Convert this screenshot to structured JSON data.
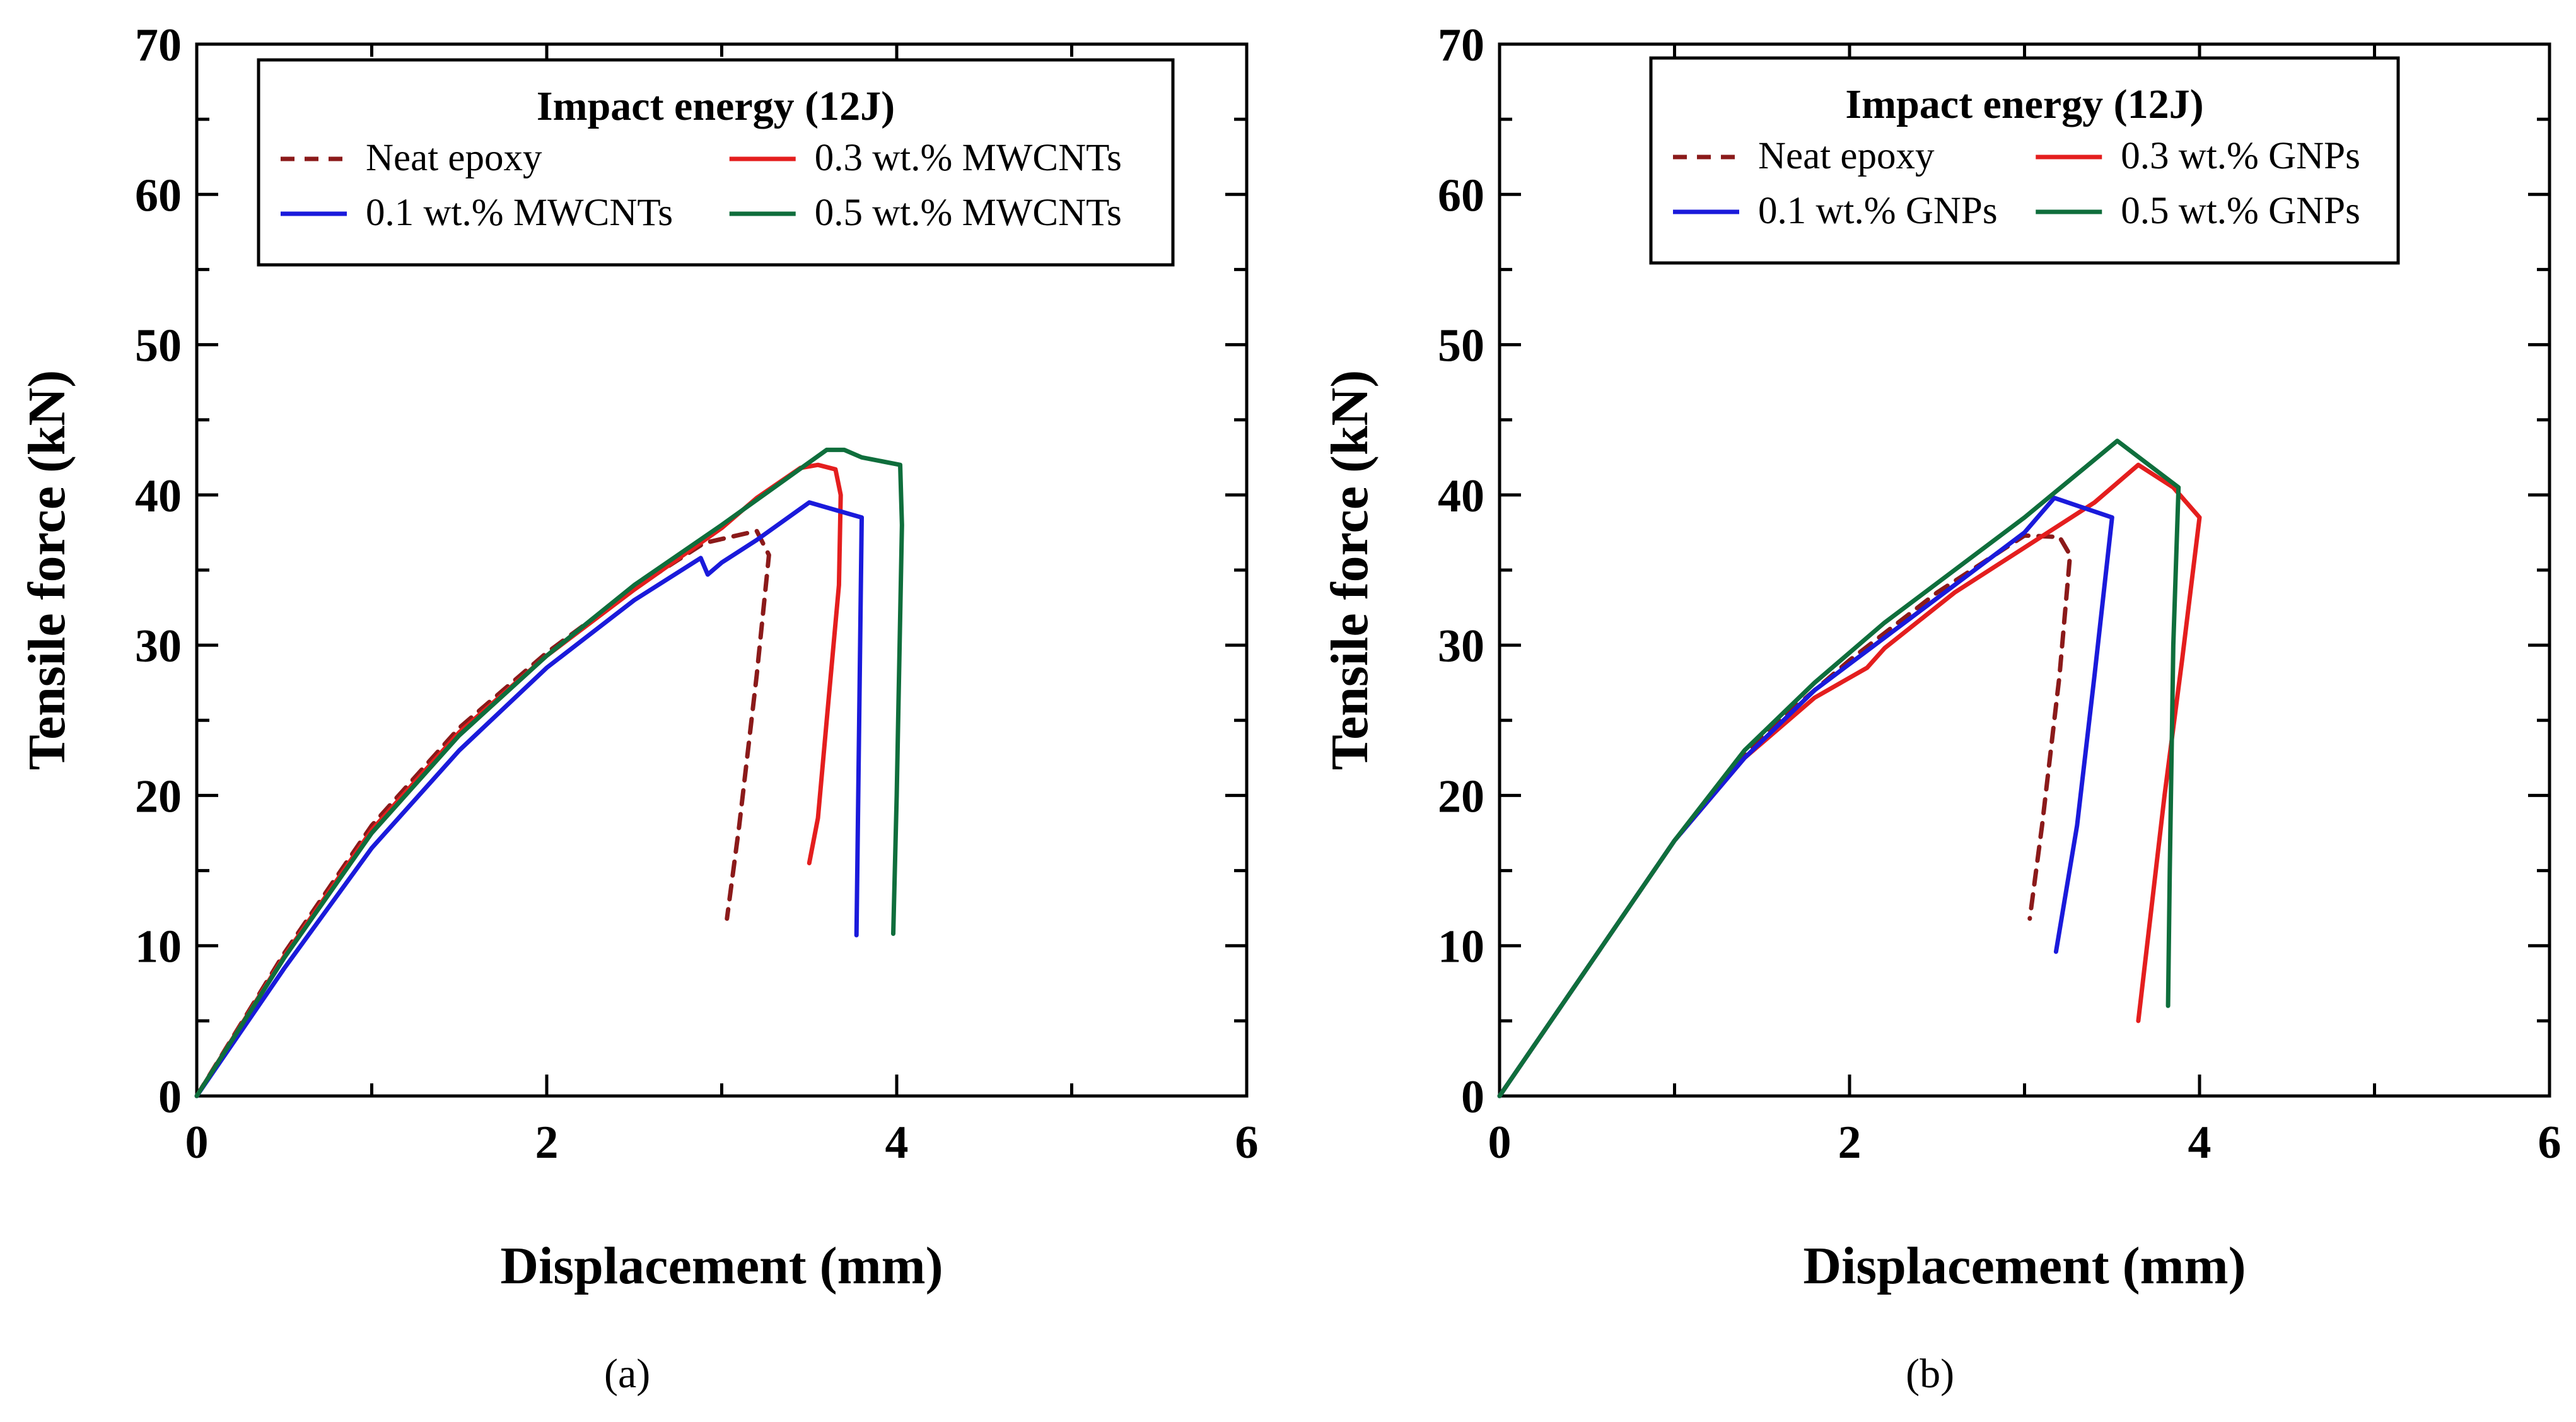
{
  "panels": [
    {
      "panel_label": "(a)",
      "chart_data": {
        "type": "line",
        "xlabel": "Displacement (mm)",
        "ylabel": "Tensile force (kN)",
        "xlim": [
          0,
          6
        ],
        "ylim": [
          0,
          70
        ],
        "xticks": [
          0,
          2,
          4,
          6
        ],
        "yticks": [
          0,
          10,
          20,
          30,
          40,
          50,
          60,
          70
        ],
        "grid": false,
        "legend": {
          "title": "Impact energy (12J)",
          "position": "top-center",
          "columns": 2
        },
        "series": [
          {
            "name": "Neat epoxy",
            "color": "#8B1A1A",
            "dash": "dashed",
            "x": [
              0,
              0.5,
              1.0,
              1.5,
              2.0,
              2.5,
              2.9,
              3.2,
              3.27,
              3.2,
              3.1,
              3.03
            ],
            "y": [
              0,
              9.5,
              18.0,
              24.5,
              29.5,
              33.8,
              36.8,
              37.6,
              36.0,
              28.0,
              18.0,
              11.8
            ]
          },
          {
            "name": "0.3 wt.% MWCNTs",
            "color": "#E41E1E",
            "dash": "solid",
            "x": [
              0,
              0.5,
              1.0,
              1.5,
              2.0,
              2.5,
              3.0,
              3.2,
              3.45,
              3.55,
              3.65,
              3.68,
              3.67,
              3.6,
              3.55,
              3.5
            ],
            "y": [
              0,
              9.3,
              17.7,
              24.2,
              29.3,
              33.7,
              37.8,
              39.8,
              41.8,
              42.0,
              41.7,
              40.0,
              34.0,
              25.0,
              18.5,
              15.5
            ]
          },
          {
            "name": "0.1 wt.% MWCNTs",
            "color": "#1A1ADB",
            "dash": "solid",
            "x": [
              0,
              0.5,
              1.0,
              1.5,
              2.0,
              2.5,
              2.88,
              2.92,
              3.0,
              3.2,
              3.5,
              3.65,
              3.8,
              3.78,
              3.77
            ],
            "y": [
              0,
              8.5,
              16.5,
              23.0,
              28.5,
              33.0,
              35.8,
              34.7,
              35.5,
              37.0,
              39.5,
              39.0,
              38.5,
              20.0,
              10.7
            ]
          },
          {
            "name": "0.5 wt.% MWCNTs",
            "color": "#0F6E3C",
            "dash": "solid",
            "x": [
              0,
              0.5,
              1.0,
              1.5,
              2.0,
              2.5,
              3.0,
              3.3,
              3.6,
              3.7,
              3.8,
              4.02,
              4.03,
              4.0,
              3.98
            ],
            "y": [
              0,
              9.2,
              17.5,
              24.0,
              29.3,
              34.0,
              38.0,
              40.5,
              43.0,
              43.0,
              42.5,
              42.0,
              38.0,
              20.0,
              10.8
            ]
          }
        ]
      }
    },
    {
      "panel_label": "(b)",
      "chart_data": {
        "type": "line",
        "xlabel": "Displacement (mm)",
        "ylabel": "Tensile force (kN)",
        "xlim": [
          0,
          6
        ],
        "ylim": [
          0,
          70
        ],
        "xticks": [
          0,
          2,
          4,
          6
        ],
        "yticks": [
          0,
          10,
          20,
          30,
          40,
          50,
          60,
          70
        ],
        "grid": false,
        "legend": {
          "title": "Impact energy (12J)",
          "position": "top-center",
          "columns": 2
        },
        "series": [
          {
            "name": "Neat epoxy",
            "color": "#8B1A1A",
            "dash": "dashed",
            "x": [
              0,
              0.5,
              1.0,
              1.5,
              2.0,
              2.5,
              3.0,
              3.2,
              3.26,
              3.2,
              3.1,
              3.03
            ],
            "y": [
              0,
              8.5,
              17.0,
              24.0,
              29.0,
              33.5,
              37.3,
              37.2,
              36.0,
              28.0,
              18.0,
              11.8
            ]
          },
          {
            "name": "0.3 wt.% GNPs",
            "color": "#E41E1E",
            "dash": "solid",
            "x": [
              0,
              0.5,
              1.0,
              1.4,
              1.8,
              2.1,
              2.2,
              2.6,
              3.0,
              3.4,
              3.65,
              3.85,
              4.0,
              3.9,
              3.8,
              3.7,
              3.65
            ],
            "y": [
              0,
              8.5,
              17.0,
              22.5,
              26.5,
              28.5,
              29.8,
              33.5,
              36.5,
              39.5,
              42.0,
              40.5,
              38.5,
              29.0,
              20.0,
              10.0,
              5.0
            ]
          },
          {
            "name": "0.1 wt.% GNPs",
            "color": "#1A1ADB",
            "dash": "solid",
            "x": [
              0,
              0.5,
              1.0,
              1.4,
              1.8,
              2.2,
              2.6,
              3.0,
              3.17,
              3.5,
              3.4,
              3.3,
              3.18
            ],
            "y": [
              0,
              8.5,
              17.0,
              22.5,
              27.0,
              30.5,
              34.0,
              37.5,
              39.8,
              38.5,
              28.0,
              18.0,
              9.6
            ]
          },
          {
            "name": "0.5 wt.% GNPs",
            "color": "#0F6E3C",
            "dash": "solid",
            "x": [
              0,
              0.5,
              1.0,
              1.4,
              1.8,
              2.2,
              2.6,
              3.0,
              3.53,
              3.88,
              3.85,
              3.83,
              3.82
            ],
            "y": [
              0,
              8.5,
              17.0,
              23.0,
              27.5,
              31.5,
              35.0,
              38.5,
              43.6,
              40.5,
              30.0,
              15.0,
              6.0
            ]
          }
        ]
      }
    }
  ]
}
